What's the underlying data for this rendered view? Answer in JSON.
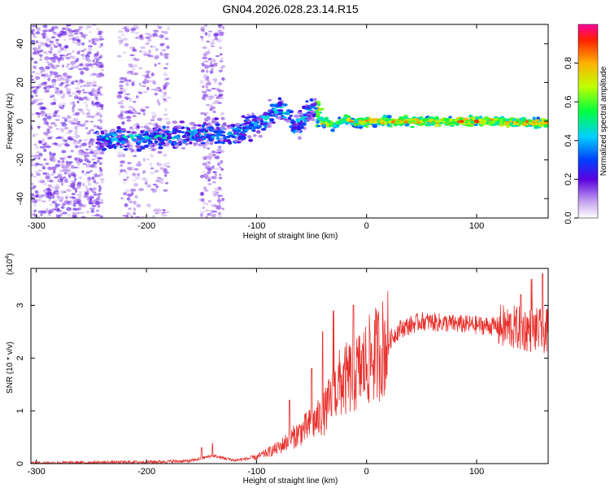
{
  "title": "GN04.2026.028.23.14.R15",
  "chart_data": [
    {
      "type": "heatmap",
      "name": "spectrogram",
      "xlabel": "Height of straight line (km)",
      "ylabel": "Frequency (Hz)",
      "xlim": [
        -305,
        165
      ],
      "ylim": [
        -50,
        50
      ],
      "xticks": [
        -300,
        -200,
        -100,
        0,
        100
      ],
      "yticks": [
        -40,
        -20,
        0,
        20,
        40
      ],
      "ridge": [
        {
          "x": -240,
          "y": -10
        },
        {
          "x": -200,
          "y": -8
        },
        {
          "x": -180,
          "y": -8
        },
        {
          "x": -150,
          "y": -6
        },
        {
          "x": -120,
          "y": -6
        },
        {
          "x": -100,
          "y": -2
        },
        {
          "x": -90,
          "y": 2
        },
        {
          "x": -80,
          "y": 6
        },
        {
          "x": -72,
          "y": 4
        },
        {
          "x": -65,
          "y": -4
        },
        {
          "x": -55,
          "y": 4
        },
        {
          "x": -48,
          "y": 8
        },
        {
          "x": -40,
          "y": 0
        },
        {
          "x": -30,
          "y": -2
        },
        {
          "x": -20,
          "y": 1
        },
        {
          "x": -10,
          "y": -1
        },
        {
          "x": 0,
          "y": 0
        },
        {
          "x": 50,
          "y": 0
        },
        {
          "x": 100,
          "y": 0
        },
        {
          "x": 165,
          "y": -1
        }
      ],
      "colorbar": {
        "label": "Normalized spectral amplitude",
        "ticks": [
          0.0,
          0.2,
          0.4,
          0.6,
          0.8
        ],
        "tick_labels": [
          "0.0",
          "0.2",
          "0.4",
          "0.6",
          "0.8"
        ],
        "range": [
          0,
          1
        ]
      }
    },
    {
      "type": "line",
      "name": "snr",
      "xlabel": "Height of straight line (km)",
      "ylabel": "SNR (10 * v/v)",
      "multiplier_label": "(x10",
      "multiplier_exp": "4",
      "multiplier_close": ")",
      "xlim": [
        -305,
        165
      ],
      "ylim": [
        0,
        3.7
      ],
      "xticks": [
        -300,
        -200,
        -100,
        0,
        100
      ],
      "yticks": [
        0,
        1,
        2,
        3
      ],
      "color": "#e8302c",
      "trend": [
        {
          "x": -305,
          "y": 0.01
        },
        {
          "x": -200,
          "y": 0.03
        },
        {
          "x": -160,
          "y": 0.05
        },
        {
          "x": -140,
          "y": 0.15
        },
        {
          "x": -120,
          "y": 0.06
        },
        {
          "x": -100,
          "y": 0.12
        },
        {
          "x": -80,
          "y": 0.3
        },
        {
          "x": -60,
          "y": 0.6
        },
        {
          "x": -40,
          "y": 0.9
        },
        {
          "x": -25,
          "y": 1.5
        },
        {
          "x": -10,
          "y": 1.7
        },
        {
          "x": 0,
          "y": 1.9
        },
        {
          "x": 15,
          "y": 2.2
        },
        {
          "x": 30,
          "y": 2.55
        },
        {
          "x": 50,
          "y": 2.7
        },
        {
          "x": 80,
          "y": 2.65
        },
        {
          "x": 120,
          "y": 2.6
        },
        {
          "x": 165,
          "y": 2.5
        }
      ],
      "spikes": [
        {
          "x": -140,
          "y": 0.38
        },
        {
          "x": -150,
          "y": 0.3
        },
        {
          "x": -70,
          "y": 1.2
        },
        {
          "x": -50,
          "y": 1.8
        },
        {
          "x": -40,
          "y": 2.5
        },
        {
          "x": -30,
          "y": 2.9
        },
        {
          "x": -12,
          "y": 3.0
        },
        {
          "x": 150,
          "y": 3.5
        },
        {
          "x": 160,
          "y": 3.6
        },
        {
          "x": 140,
          "y": 3.2
        }
      ]
    }
  ]
}
